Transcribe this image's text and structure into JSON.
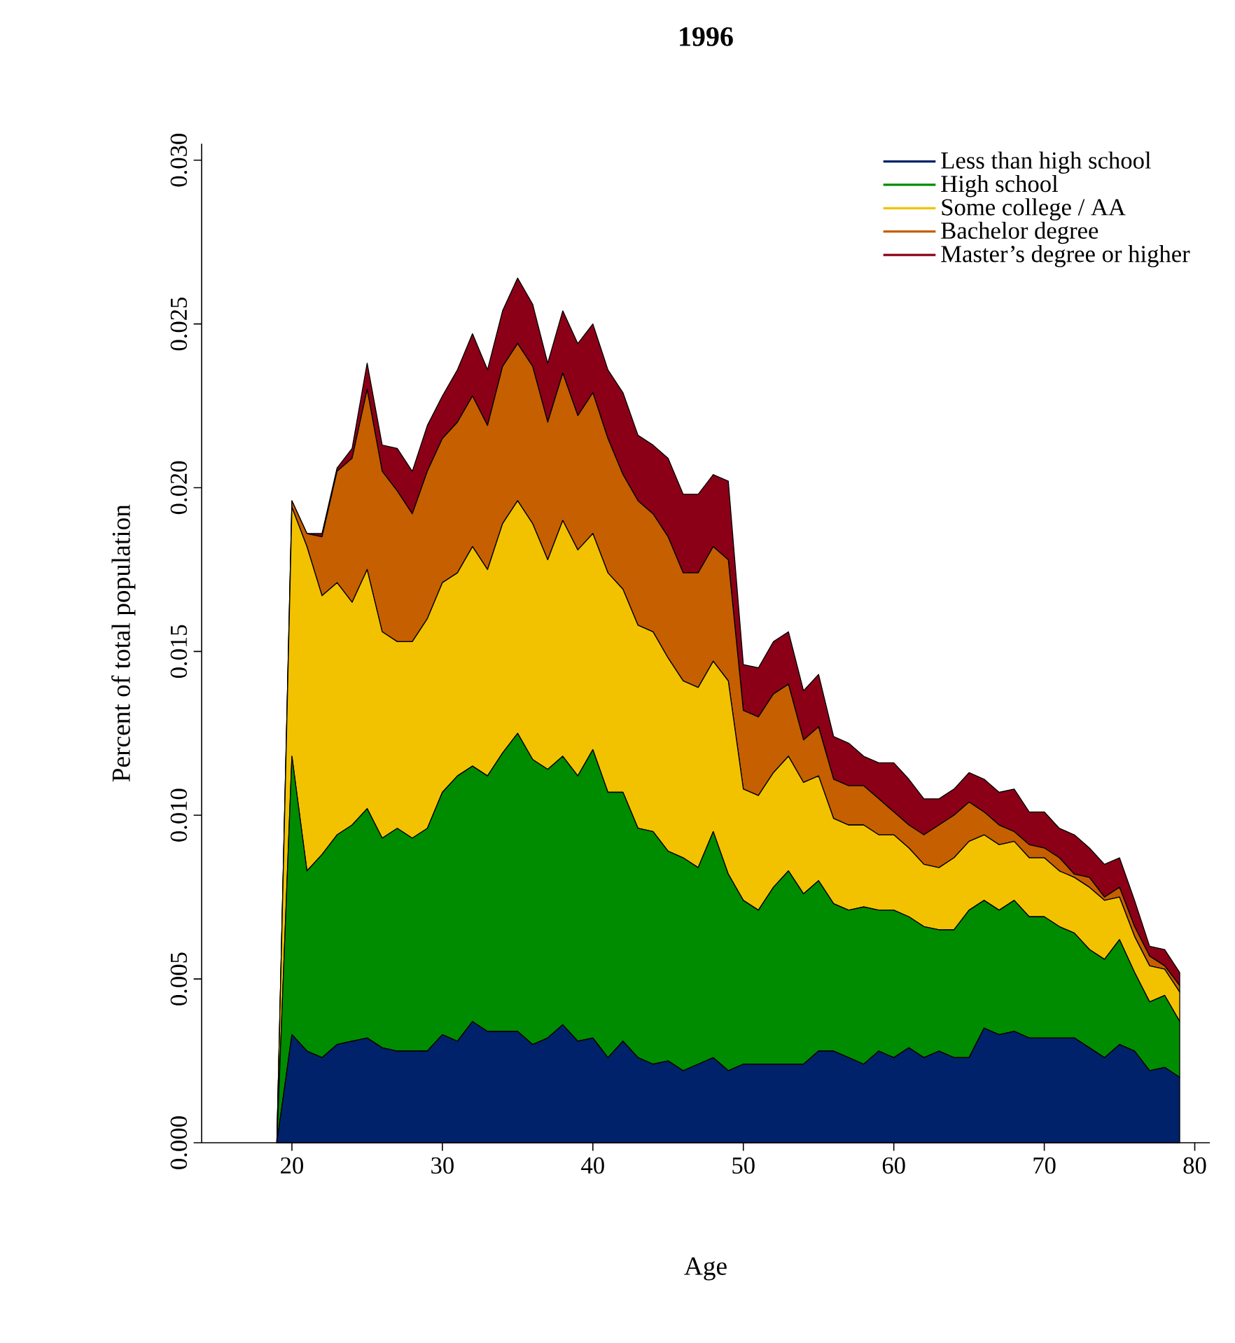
{
  "chart_data": {
    "type": "area",
    "title": "1996",
    "xlabel": "Age",
    "ylabel": "Percent of total population",
    "stacked": true,
    "legend": "top right",
    "x": [
      19,
      20,
      21,
      22,
      23,
      24,
      25,
      26,
      27,
      28,
      29,
      30,
      31,
      32,
      33,
      34,
      35,
      36,
      37,
      38,
      39,
      40,
      41,
      42,
      43,
      44,
      45,
      46,
      47,
      48,
      49,
      50,
      51,
      52,
      53,
      54,
      55,
      56,
      57,
      58,
      59,
      60,
      61,
      62,
      63,
      64,
      65,
      66,
      67,
      68,
      69,
      70,
      71,
      72,
      73,
      74,
      75,
      76,
      77,
      78,
      79
    ],
    "xlim": [
      14,
      81
    ],
    "xticks": [
      20,
      30,
      40,
      50,
      60,
      70,
      80
    ],
    "ylim": [
      0,
      0.0305
    ],
    "yticks": [
      {
        "value": 0,
        "label": "0.000"
      },
      {
        "value": 0.005,
        "label": "0.005"
      },
      {
        "value": 0.01,
        "label": "0.010"
      },
      {
        "value": 0.015,
        "label": "0.015"
      },
      {
        "value": 0.02,
        "label": "0.020"
      },
      {
        "value": 0.025,
        "label": "0.025"
      },
      {
        "value": 0.03,
        "label": "0.030"
      }
    ],
    "series": [
      {
        "name": "Less than high school",
        "color": "#00226a",
        "values": [
          0,
          0.0033,
          0.0028,
          0.0026,
          0.003,
          0.0031,
          0.0032,
          0.0029,
          0.0028,
          0.0028,
          0.0028,
          0.0033,
          0.0031,
          0.0037,
          0.0034,
          0.0034,
          0.0034,
          0.003,
          0.0032,
          0.0036,
          0.0031,
          0.0032,
          0.0026,
          0.0031,
          0.0026,
          0.0024,
          0.0025,
          0.0022,
          0.0024,
          0.0026,
          0.0022,
          0.0024,
          0.0024,
          0.0024,
          0.0024,
          0.0024,
          0.0028,
          0.0028,
          0.0026,
          0.0024,
          0.0028,
          0.0026,
          0.0029,
          0.0026,
          0.0028,
          0.0026,
          0.0026,
          0.0035,
          0.0033,
          0.0034,
          0.0032,
          0.0032,
          0.0032,
          0.0032,
          0.0029,
          0.0026,
          0.003,
          0.0028,
          0.0022,
          0.0023,
          0.002
        ]
      },
      {
        "name": "High school",
        "color": "#008c00",
        "values": [
          0,
          0.0085,
          0.0055,
          0.0062,
          0.0064,
          0.0066,
          0.007,
          0.0064,
          0.0068,
          0.0065,
          0.0068,
          0.0074,
          0.0081,
          0.0078,
          0.0078,
          0.0085,
          0.0091,
          0.0087,
          0.0082,
          0.0082,
          0.0081,
          0.0088,
          0.0081,
          0.0076,
          0.007,
          0.0071,
          0.0064,
          0.0065,
          0.006,
          0.0069,
          0.006,
          0.005,
          0.0047,
          0.0054,
          0.0059,
          0.0052,
          0.0052,
          0.0045,
          0.0045,
          0.0048,
          0.0043,
          0.0045,
          0.004,
          0.004,
          0.0037,
          0.0039,
          0.0045,
          0.0039,
          0.0038,
          0.004,
          0.0037,
          0.0037,
          0.0034,
          0.0032,
          0.003,
          0.003,
          0.0032,
          0.0024,
          0.0021,
          0.0022,
          0.0017
        ]
      },
      {
        "name": "Some college / AA",
        "color": "#f2c200",
        "values": [
          0,
          0.0076,
          0.0099,
          0.0079,
          0.0077,
          0.0068,
          0.0073,
          0.0063,
          0.0057,
          0.006,
          0.0064,
          0.0064,
          0.0062,
          0.0067,
          0.0063,
          0.007,
          0.0071,
          0.0072,
          0.0064,
          0.0072,
          0.0069,
          0.0066,
          0.0067,
          0.0062,
          0.0062,
          0.0061,
          0.0059,
          0.0054,
          0.0055,
          0.0052,
          0.0059,
          0.0034,
          0.0035,
          0.0035,
          0.0035,
          0.0034,
          0.0032,
          0.0026,
          0.0026,
          0.0025,
          0.0023,
          0.0023,
          0.0021,
          0.0019,
          0.0019,
          0.0022,
          0.0021,
          0.002,
          0.002,
          0.0018,
          0.0018,
          0.0018,
          0.0017,
          0.0017,
          0.0019,
          0.0018,
          0.0013,
          0.0011,
          0.0011,
          0.0008,
          0.0009
        ]
      },
      {
        "name": "Bachelor degree",
        "color": "#c65f00",
        "values": [
          0,
          0.0002,
          0.0004,
          0.0018,
          0.0034,
          0.0044,
          0.0055,
          0.0049,
          0.0046,
          0.0039,
          0.0045,
          0.0044,
          0.0046,
          0.0046,
          0.0044,
          0.0048,
          0.0048,
          0.0048,
          0.0042,
          0.0045,
          0.0041,
          0.0043,
          0.0041,
          0.0035,
          0.0038,
          0.0036,
          0.0037,
          0.0033,
          0.0035,
          0.0035,
          0.0037,
          0.0024,
          0.0024,
          0.0024,
          0.0022,
          0.0013,
          0.0015,
          0.0012,
          0.0012,
          0.0012,
          0.0011,
          0.0007,
          0.0007,
          0.0009,
          0.0013,
          0.0013,
          0.0012,
          0.0007,
          0.0006,
          0.0003,
          0.0004,
          0.0003,
          0.0004,
          0.0001,
          0.0003,
          0.0001,
          0.0003,
          0.0003,
          0.0003,
          0.0001,
          0.0002
        ]
      },
      {
        "name": "Master’s degree or higher",
        "color": "#8b0017",
        "values": [
          0,
          0,
          0,
          0.0001,
          0.0001,
          0.0003,
          0.0008,
          0.0008,
          0.0013,
          0.0013,
          0.0014,
          0.0013,
          0.0016,
          0.0019,
          0.0017,
          0.0017,
          0.002,
          0.0019,
          0.0018,
          0.0019,
          0.0022,
          0.0021,
          0.0021,
          0.0025,
          0.002,
          0.0021,
          0.0024,
          0.0024,
          0.0024,
          0.0022,
          0.0024,
          0.0014,
          0.0015,
          0.0016,
          0.0016,
          0.0015,
          0.0016,
          0.0013,
          0.0013,
          0.0009,
          0.0011,
          0.0015,
          0.0014,
          0.0011,
          0.0008,
          0.0008,
          0.0009,
          0.001,
          0.001,
          0.0013,
          0.001,
          0.0011,
          0.0009,
          0.0012,
          0.0009,
          0.001,
          0.0009,
          0.0008,
          0.0003,
          0.0005,
          0.0004
        ]
      }
    ]
  }
}
